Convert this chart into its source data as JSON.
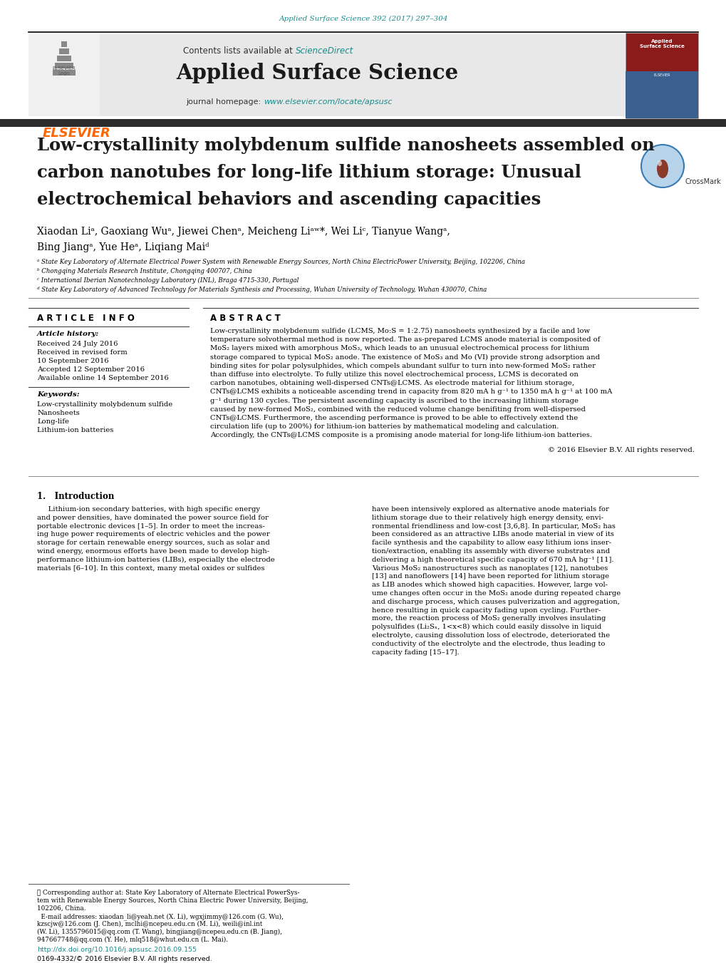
{
  "journal_ref": "Applied Surface Science 392 (2017) 297–304",
  "journal_ref_color": "#1a8a8a",
  "contents_text": "Contents lists available at ",
  "sciencedirect_text": "ScienceDirect",
  "sciencedirect_color": "#1a8a8a",
  "journal_name": "Applied Surface Science",
  "journal_homepage_text": "journal homepage: ",
  "journal_homepage_url": "www.elsevier.com/locate/apsusc",
  "journal_homepage_url_color": "#1a8a8a",
  "elsevier_color": "#FF6600",
  "elsevier_text": "ELSEVIER",
  "article_title": "Low-crystallinity molybdenum sulfide nanosheets assembled on\ncarbon nanotubes for long-life lithium storage: Unusual\nelectrochemical behaviors and ascending capacities",
  "authors_line1": "Xiaodan Liᵃ, Gaoxiang Wuᵃ, Jiewei Chenᵃ, Meicheng Liᵃʷ*, Wei Liᶜ, Tianyue Wangᵃ,",
  "authors_line2": "Bing Jiangᵃ, Yue Heᵃ, Liqiang Maiᵈ",
  "affiliation_a": "ᵃ State Key Laboratory of Alternate Electrical Power System with Renewable Energy Sources, North China ElectricPower University, Beijing, 102206, China",
  "affiliation_b": "ᵇ Chongqing Materials Research Institute, Chongqing 400707, China",
  "affiliation_c": "ᶜ International Iberian Nanotechnology Laboratory (INL), Braga 4715-330, Portugal",
  "affiliation_d": "ᵈ State Key Laboratory of Advanced Technology for Materials Synthesis and Processing, Wuhan University of Technology, Wuhan 430070, China",
  "article_info_title": "A R T I C L E   I N F O",
  "article_history_title": "Article history:",
  "received": "Received 24 July 2016",
  "received_revised": "Received in revised form",
  "revised_date": "10 September 2016",
  "accepted": "Accepted 12 September 2016",
  "available": "Available online 14 September 2016",
  "keywords_title": "Keywords:",
  "keyword1": "Low-crystallinity molybdenum sulfide",
  "keyword2": "Nanosheets",
  "keyword3": "Long-life",
  "keyword4": "Lithium-ion batteries",
  "abstract_title": "A B S T R A C T",
  "abstract_text": "Low-crystallinity molybdenum sulfide (LCMS, Mo:S = 1:2.75) nanosheets synthesized by a facile and low\ntemperature solvothermal method is now reported. The as-prepared LCMS anode material is composited of MoS₂ layers mixed with amorphous MoS₃, which leads to an unusual electrochemical process for lithium storage compared to typical MoS₂ anode. The existence of MoS₃ and Mo (VI) provide strong adsorption and binding sites for polar polysulphides, which compels abundant sulfur to turn into new-formed MoS₂ rather than diffuse into electrolyte. To fully utilize this novel electrochemical process, LCMS is decorated on carbon nanotubes, obtaining well-dispersed CNTs@LCMS. As electrode material for lithium storage, CNTs@LCMS exhibits a noticeable ascending trend in capacity from 820 mA h g⁻¹ to 1350 mA h g⁻¹ at 100 mA g⁻¹ during 130 cycles. The persistent ascending capacity is ascribed to the increasing lithium storage caused by new-formed MoS₂, combined with the reduced volume change benifiting from well-dispersed CNTs@LCMS. Furthermore, the ascending performance is proved to be able to effectively extend the circulation life (up to 200%) for lithium-ion batteries by mathematical modeling and calculation. Accordingly, the CNTs@LCMS composite is a promising anode material for long-life lithium-ion batteries.",
  "copyright_text": "© 2016 Elsevier B.V. All rights reserved.",
  "intro_title": "1.   Introduction",
  "intro_col1_lines": [
    "     Lithium-ion secondary batteries, with high specific energy",
    "and power densities, have dominated the power source field for",
    "portable electronic devices [1–5]. In order to meet the increas-",
    "ing huge power requirements of electric vehicles and the power",
    "storage for certain renewable energy sources, such as solar and",
    "wind energy, enormous efforts have been made to develop high-",
    "performance lithium-ion batteries (LIBs), especially the electrode",
    "materials [6–10]. In this context, many metal oxides or sulfides"
  ],
  "intro_col2_lines": [
    "have been intensively explored as alternative anode materials for",
    "lithium storage due to their relatively high energy density, envi-",
    "ronmental friendliness and low-cost [3,6,8]. In particular, MoS₂ has",
    "been considered as an attractive LIBs anode material in view of its",
    "facile synthesis and the capability to allow easy lithium ions inser-",
    "tion/extraction, enabling its assembly with diverse substrates and",
    "delivering a high theoretical specific capacity of 670 mA hg⁻¹ [11].",
    "Various MoS₂ nanostructures such as nanoplates [12], nanotubes",
    "[13] and nanoflowers [14] have been reported for lithium storage",
    "as LIB anodes which showed high capacities. However, large vol-",
    "ume changes often occur in the MoS₂ anode during repeated charge",
    "and discharge process, which causes pulverization and aggregation,",
    "hence resulting in quick capacity fading upon cycling. Further-",
    "more, the reaction process of MoS₂ generally involves insulating",
    "polysulfides (Li₂Sₓ, 1<x<8) which could easily dissolve in liquid",
    "electrolyte, causing dissolution loss of electrode, deteriorated the",
    "conductivity of the electrolyte and the electrode, thus leading to",
    "capacity fading [15–17]."
  ],
  "footnote_star": "★ Corresponding author at: State Key Laboratory of Alternate Electrical PowerSys-",
  "footnote_line2": "tem with Renewable Energy Sources, North China Electric Power University, Beijing,",
  "footnote_line3": "102206, China.",
  "footnote_email_label": "  E-mail addresses: ",
  "footnote_email1": "xiaodan_li@yeah.net",
  "footnote_email1_end": " (X. Li), ",
  "footnote_email2": "wgxjimmy@126.com",
  "footnote_email2_end": " (G. Wu),",
  "footnote_line5": "kzscjw@126.com (J. Chen), mclhi@ncepeu.edu.cn (M. Li), weili@inl.int",
  "footnote_line6": "(W. Li), 1355796015@qq.com (T. Wang), bingjiang@ncepeu.edu.cn (B. Jiang),",
  "footnote_line7": "947667748@qq.com (Y. He), mlq518@whut.edu.cn (L. Mai).",
  "doi_text": "http://dx.doi.org/10.1016/j.apsusc.2016.09.155",
  "issn_text": "0169-4332/© 2016 Elsevier B.V. All rights reserved.",
  "bg_color": "#ffffff",
  "header_bg": "#e8e8e8",
  "dark_bar_color": "#2c2c2c",
  "text_color": "#000000",
  "title_color": "#1a1a1a",
  "separator_color": "#888888",
  "teal_color": "#1a8a8a"
}
